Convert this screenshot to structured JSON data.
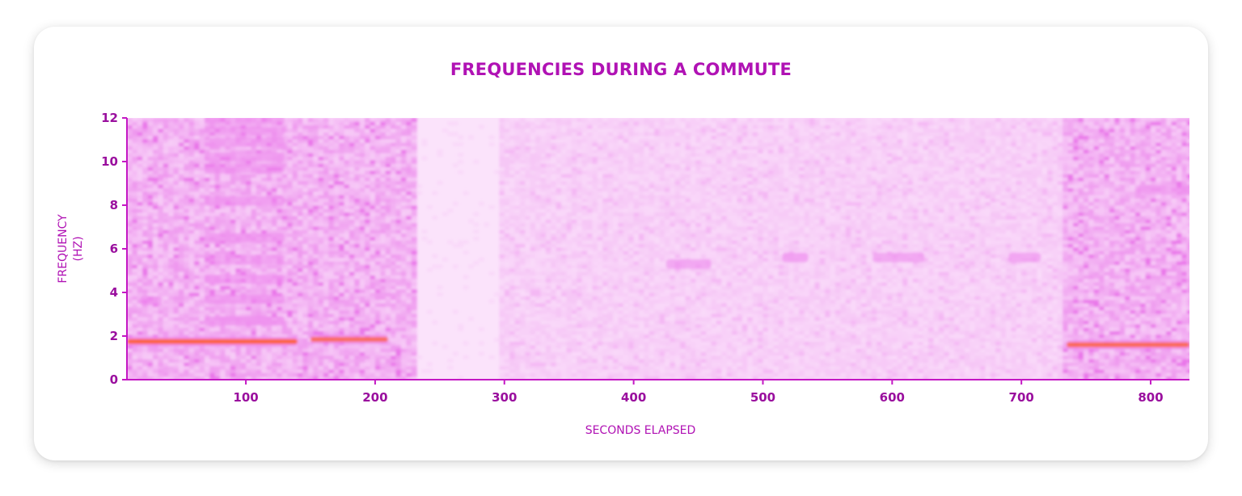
{
  "card": {},
  "chart_data": {
    "type": "heatmap",
    "title": "FREQUENCIES DURING A COMMUTE",
    "xlabel": "SECONDS ELAPSED",
    "ylabel_lines": [
      "FREQUENCY",
      "(HZ)"
    ],
    "xlim": [
      8,
      830
    ],
    "ylim": [
      0,
      12
    ],
    "x_ticks": [
      100,
      200,
      300,
      400,
      500,
      600,
      700,
      800
    ],
    "y_ticks": [
      0,
      2,
      4,
      6,
      8,
      10,
      12
    ],
    "colors": {
      "low": "#fbe3fb",
      "mid": "#ee88ee",
      "high": "#ff5a14",
      "axis": "#c418c4",
      "text": "#9a0f9e"
    },
    "grid": false,
    "segments": [
      {
        "x0": 8,
        "x1": 230,
        "level": "high-activity"
      },
      {
        "x0": 230,
        "x1": 295,
        "level": "quiet"
      },
      {
        "x0": 295,
        "x1": 305,
        "level": "low-activity"
      },
      {
        "x0": 305,
        "x1": 660,
        "level": "low-activity"
      },
      {
        "x0": 660,
        "x1": 730,
        "level": "low-activity"
      },
      {
        "x0": 730,
        "x1": 830,
        "level": "high-activity"
      }
    ],
    "bands": [
      {
        "x0": 8,
        "x1": 140,
        "f": 1.75,
        "intensity": 1.0
      },
      {
        "x0": 150,
        "x1": 210,
        "f": 1.85,
        "intensity": 0.8
      },
      {
        "x0": 68,
        "x1": 130,
        "f": 2.7,
        "intensity": 0.55
      },
      {
        "x0": 68,
        "x1": 130,
        "f": 3.7,
        "intensity": 0.45
      },
      {
        "x0": 68,
        "x1": 130,
        "f": 4.6,
        "intensity": 0.4
      },
      {
        "x0": 68,
        "x1": 130,
        "f": 5.5,
        "intensity": 0.35
      },
      {
        "x0": 68,
        "x1": 130,
        "f": 6.5,
        "intensity": 0.35
      },
      {
        "x0": 68,
        "x1": 130,
        "f": 8.2,
        "intensity": 0.45
      },
      {
        "x0": 68,
        "x1": 130,
        "f": 9.7,
        "intensity": 0.35
      },
      {
        "x0": 68,
        "x1": 130,
        "f": 10.2,
        "intensity": 0.35
      },
      {
        "x0": 68,
        "x1": 130,
        "f": 10.9,
        "intensity": 0.35
      },
      {
        "x0": 68,
        "x1": 130,
        "f": 11.4,
        "intensity": 0.35
      },
      {
        "x0": 68,
        "x1": 130,
        "f": 11.9,
        "intensity": 0.35
      },
      {
        "x0": 18,
        "x1": 35,
        "f": 3.6,
        "intensity": 0.5
      },
      {
        "x0": 425,
        "x1": 460,
        "f": 5.3,
        "intensity": 0.45
      },
      {
        "x0": 515,
        "x1": 535,
        "f": 5.6,
        "intensity": 0.6
      },
      {
        "x0": 585,
        "x1": 625,
        "f": 5.6,
        "intensity": 0.45
      },
      {
        "x0": 690,
        "x1": 715,
        "f": 5.6,
        "intensity": 0.45
      },
      {
        "x0": 735,
        "x1": 830,
        "f": 1.6,
        "intensity": 0.85
      },
      {
        "x0": 790,
        "x1": 830,
        "f": 8.7,
        "intensity": 0.3
      }
    ]
  }
}
